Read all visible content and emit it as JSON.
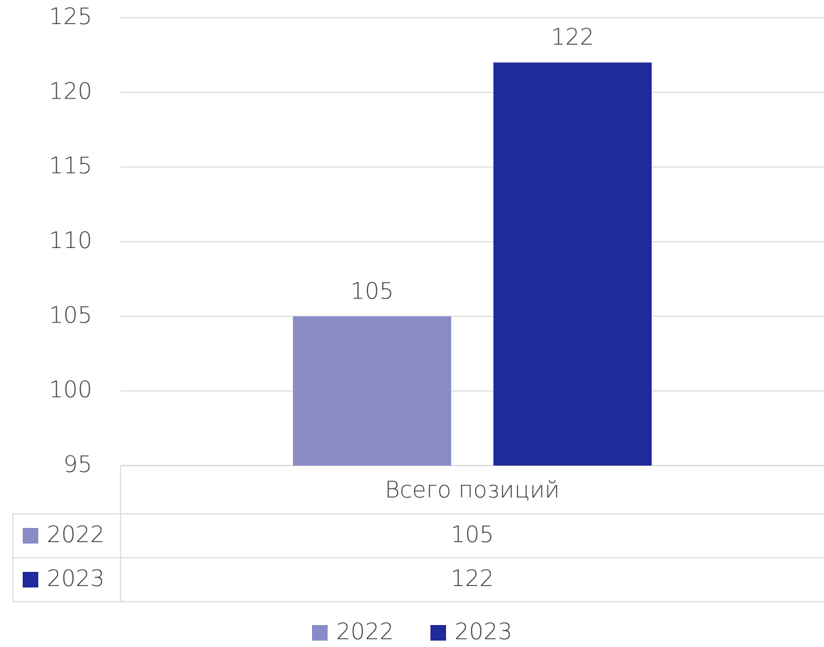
{
  "chart_data": {
    "type": "bar",
    "categories": [
      "Всего позиций"
    ],
    "series": [
      {
        "name": "2022",
        "color": "#8a8cc8",
        "values": [
          105
        ]
      },
      {
        "name": "2023",
        "color": "#1f2a9b",
        "values": [
          122
        ]
      }
    ],
    "ylim": [
      95,
      125
    ],
    "yticks": [
      95,
      100,
      105,
      110,
      115,
      120,
      125
    ],
    "grid": true,
    "data_table": true,
    "legend": "bottom"
  }
}
